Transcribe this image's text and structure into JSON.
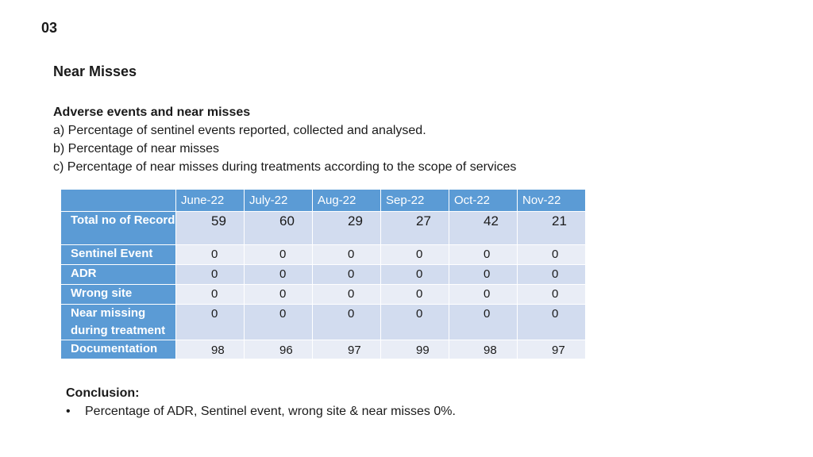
{
  "slide_number": "03",
  "heading": "Near Misses",
  "intro": {
    "subheading": "Adverse events and near misses",
    "lines": [
      "a) Percentage of sentinel events reported, collected and analysed.",
      "b) Percentage of near misses",
      "c) Percentage of near misses during treatments according to the scope of services"
    ]
  },
  "table": {
    "columns": [
      "",
      "June-22",
      "July-22",
      "Aug-22",
      "Sep-22",
      "Oct-22",
      "Nov-22"
    ],
    "rows": [
      {
        "label": "Total no of Record",
        "values": [
          "59",
          "60",
          "29",
          "27",
          "42",
          "21"
        ]
      },
      {
        "label": "Sentinel Event",
        "values": [
          "0",
          "0",
          "0",
          "0",
          "0",
          "0"
        ]
      },
      {
        "label": "ADR",
        "values": [
          "0",
          "0",
          "0",
          "0",
          "0",
          "0"
        ]
      },
      {
        "label": "Wrong site",
        "values": [
          "0",
          "0",
          "0",
          "0",
          "0",
          "0"
        ]
      },
      {
        "label": "Near missing during treatment",
        "values": [
          "0",
          "0",
          "0",
          "0",
          "0",
          "0"
        ]
      },
      {
        "label": "Documentation",
        "values": [
          "98",
          "96",
          "97",
          "99",
          "98",
          "97"
        ]
      }
    ]
  },
  "conclusion": {
    "title": "Conclusion:",
    "bullets": [
      "Percentage of ADR, Sentinel event, wrong site & near misses  0%."
    ]
  },
  "colors": {
    "header_blue": "#5b9bd5",
    "row_light_1": "#d2dcef",
    "row_light_2": "#e9edf6"
  }
}
